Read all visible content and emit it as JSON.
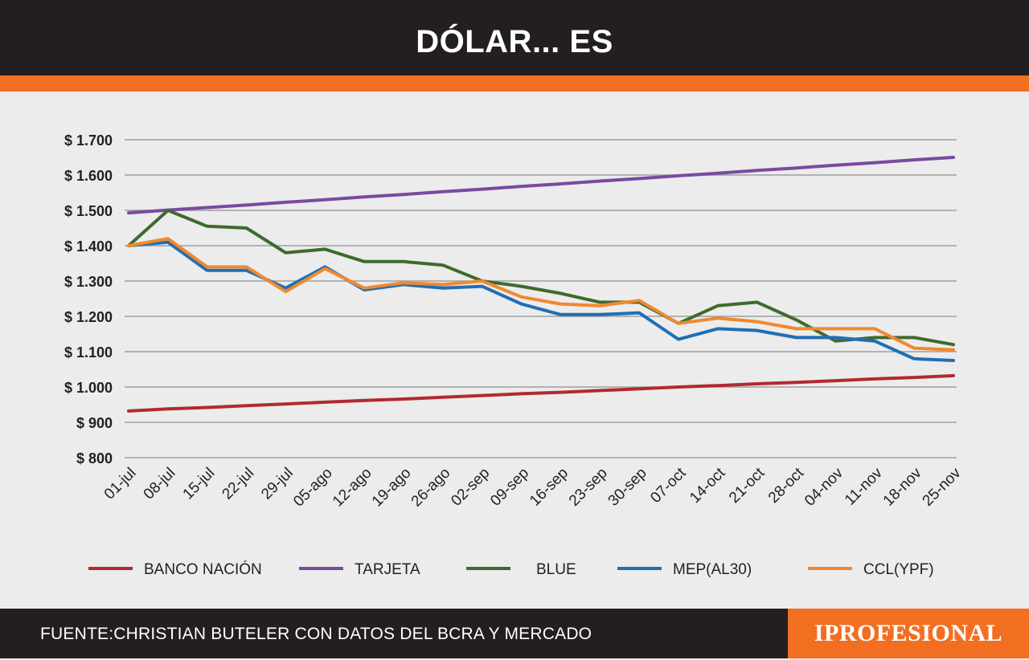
{
  "header": {
    "title": "DÓLAR... ES"
  },
  "footer": {
    "source": "FUENTE:CHRISTIAN BUTELER CON DATOS DEL BCRA Y MERCADO",
    "brand": "IPROFESIONAL"
  },
  "colors": {
    "header_bg": "#231f20",
    "accent": "#f26f21",
    "plot_bg": "#ececec",
    "grid": "#9e9e9e"
  },
  "chart_data": {
    "type": "line",
    "title": "DÓLAR... ES",
    "xlabel": "",
    "ylabel": "",
    "ylim": [
      800,
      1700
    ],
    "yticks": [
      800,
      900,
      1000,
      1100,
      1200,
      1300,
      1400,
      1500,
      1600,
      1700
    ],
    "ytick_labels": [
      "$ 800",
      "$ 900",
      "$ 1.000",
      "$ 1.100",
      "$ 1.200",
      "$ 1.300",
      "$ 1.400",
      "$ 1.500",
      "$ 1.600",
      "$ 1.700"
    ],
    "x_categories": [
      "01-jul",
      "08-jul",
      "15-jul",
      "22-jul",
      "29-jul",
      "05-ago",
      "12-ago",
      "19-ago",
      "26-ago",
      "02-sep",
      "09-sep",
      "16-sep",
      "23-sep",
      "30-sep",
      "07-oct",
      "14-oct",
      "21-oct",
      "28-oct",
      "04-nov",
      "11-nov",
      "18-nov",
      "25-nov"
    ],
    "grid": true,
    "legend_position": "bottom",
    "series": [
      {
        "name": "BANCO NACIÓN",
        "color": "#b22a2e",
        "values": [
          932,
          938,
          942,
          947,
          952,
          957,
          962,
          966,
          971,
          976,
          981,
          985,
          990,
          995,
          1000,
          1004,
          1009,
          1013,
          1018,
          1023,
          1027,
          1032
        ]
      },
      {
        "name": "TARJETA",
        "color": "#7a4aa0",
        "values": [
          1493,
          1501,
          1508,
          1515,
          1523,
          1530,
          1538,
          1545,
          1553,
          1560,
          1568,
          1575,
          1583,
          1590,
          1598,
          1605,
          1613,
          1620,
          1628,
          1635,
          1643,
          1650
        ]
      },
      {
        "name": "BLUE",
        "color": "#3f6b2c",
        "values": [
          1400,
          1500,
          1455,
          1450,
          1380,
          1390,
          1355,
          1355,
          1345,
          1300,
          1285,
          1265,
          1240,
          1240,
          1180,
          1230,
          1240,
          1190,
          1130,
          1140,
          1140,
          1120
        ]
      },
      {
        "name": "MEP(AL30)",
        "color": "#1f6fb5",
        "values": [
          1400,
          1410,
          1330,
          1330,
          1280,
          1340,
          1275,
          1290,
          1280,
          1285,
          1235,
          1205,
          1205,
          1210,
          1135,
          1165,
          1160,
          1140,
          1140,
          1130,
          1080,
          1075
        ]
      },
      {
        "name": "CCL(YPF)",
        "color": "#f0892f",
        "values": [
          1400,
          1420,
          1340,
          1340,
          1270,
          1335,
          1280,
          1295,
          1290,
          1300,
          1255,
          1235,
          1230,
          1245,
          1180,
          1195,
          1185,
          1165,
          1165,
          1165,
          1110,
          1105
        ]
      }
    ]
  }
}
